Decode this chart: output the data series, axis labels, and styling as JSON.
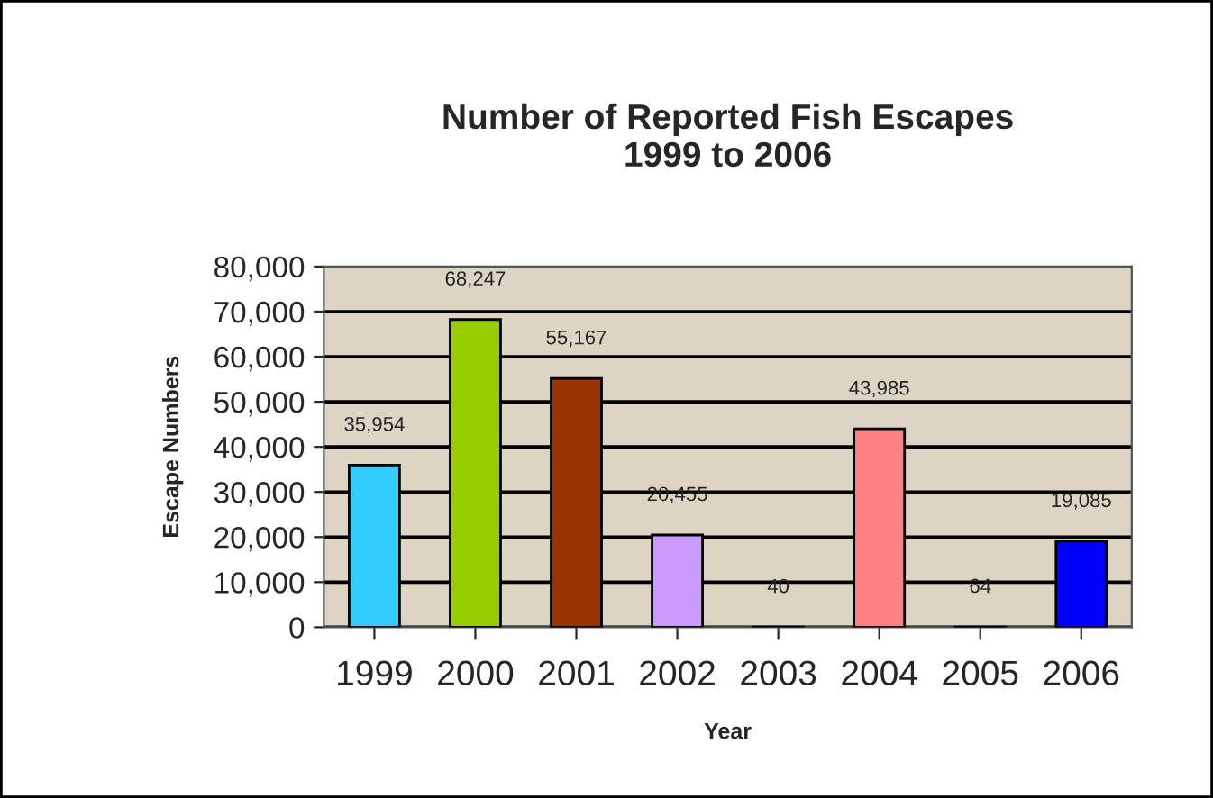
{
  "chart_data": {
    "type": "bar",
    "title": "Number of Reported Fish Escapes\n1999 to 2006",
    "xlabel": "Year",
    "ylabel": "Escape Numbers",
    "categories": [
      "1999",
      "2000",
      "2001",
      "2002",
      "2003",
      "2004",
      "2005",
      "2006"
    ],
    "values": [
      35954,
      68247,
      55167,
      20455,
      40,
      43985,
      64,
      19085
    ],
    "value_labels": [
      "35,954",
      "68,247",
      "55,167",
      "20,455",
      "40",
      "43,985",
      "64",
      "19,085"
    ],
    "colors": [
      "#33ccff",
      "#99cc00",
      "#993300",
      "#cc99ff",
      "#ffff99",
      "#ff8080",
      "#333399",
      "#0000ff"
    ],
    "ylim": [
      0,
      80000
    ],
    "yticks": [
      {
        "value": 0,
        "label": "0"
      },
      {
        "value": 10000,
        "label": "10,000"
      },
      {
        "value": 20000,
        "label": "20,000"
      },
      {
        "value": 30000,
        "label": "30,000"
      },
      {
        "value": 40000,
        "label": "40,000"
      },
      {
        "value": 50000,
        "label": "50,000"
      },
      {
        "value": 60000,
        "label": "60,000"
      },
      {
        "value": 70000,
        "label": "70,000"
      },
      {
        "value": 80000,
        "label": "80,000"
      }
    ],
    "grid": "y",
    "legend": false
  }
}
